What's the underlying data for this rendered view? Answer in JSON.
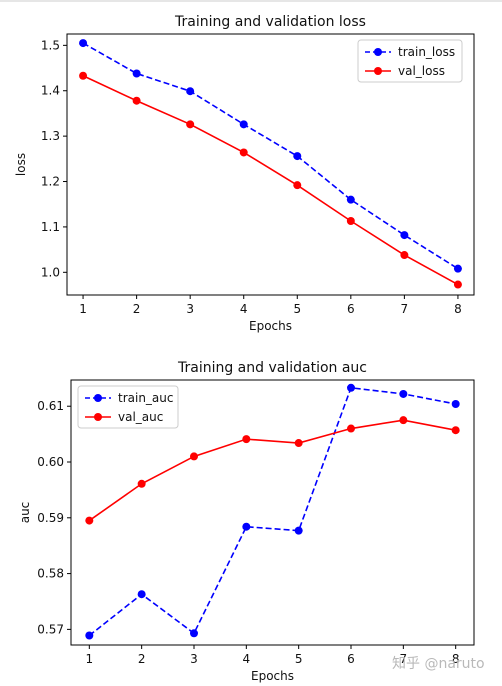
{
  "chart_data": [
    {
      "type": "line",
      "title": "Training and validation loss",
      "xlabel": "Epochs",
      "ylabel": "loss",
      "x": [
        1,
        2,
        3,
        4,
        5,
        6,
        7,
        8
      ],
      "xlim": [
        0.7,
        8.3
      ],
      "ylim": [
        0.95,
        1.525
      ],
      "yticks": [
        1.0,
        1.1,
        1.2,
        1.3,
        1.4,
        1.5
      ],
      "ytick_labels": [
        "1.0",
        "1.1",
        "1.2",
        "1.3",
        "1.4",
        "1.5"
      ],
      "xtick_labels": [
        "1",
        "2",
        "3",
        "4",
        "5",
        "6",
        "7",
        "8"
      ],
      "legend": "upper right",
      "series": [
        {
          "name": "train_loss",
          "color": "#0000ff",
          "style": "dashed",
          "marker": "circle",
          "values": [
            1.505,
            1.438,
            1.399,
            1.326,
            1.256,
            1.16,
            1.082,
            1.008
          ]
        },
        {
          "name": "val_loss",
          "color": "#ff0000",
          "style": "solid",
          "marker": "circle",
          "values": [
            1.433,
            1.378,
            1.326,
            1.264,
            1.192,
            1.113,
            1.038,
            0.973
          ]
        }
      ]
    },
    {
      "type": "line",
      "title": "Training and validation auc",
      "xlabel": "Epochs",
      "ylabel": "auc",
      "x": [
        1,
        2,
        3,
        4,
        5,
        6,
        7,
        8
      ],
      "xlim": [
        0.65,
        8.35
      ],
      "ylim": [
        0.5672,
        0.6147
      ],
      "yticks": [
        0.57,
        0.58,
        0.59,
        0.6,
        0.61
      ],
      "ytick_labels": [
        "0.57",
        "0.58",
        "0.59",
        "0.60",
        "0.61"
      ],
      "xtick_labels": [
        "1",
        "2",
        "3",
        "4",
        "5",
        "6",
        "7",
        "8"
      ],
      "legend": "upper left",
      "series": [
        {
          "name": "train_auc",
          "color": "#0000ff",
          "style": "dashed",
          "marker": "circle",
          "values": [
            0.5689,
            0.5763,
            0.5693,
            0.5884,
            0.5877,
            0.6133,
            0.6122,
            0.6104
          ]
        },
        {
          "name": "val_auc",
          "color": "#ff0000",
          "style": "solid",
          "marker": "circle",
          "values": [
            0.5895,
            0.5961,
            0.601,
            0.6041,
            0.6034,
            0.606,
            0.6075,
            0.6057
          ]
        }
      ]
    }
  ],
  "watermark": "知乎 @naruto"
}
